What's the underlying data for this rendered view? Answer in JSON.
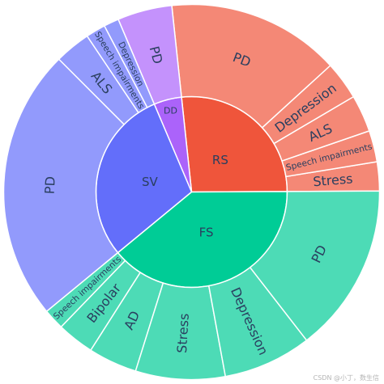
{
  "chart_data": {
    "type": "sunburst",
    "colors": {
      "RS": "#ef553b",
      "FS": "#00cc96",
      "SV": "#636efa",
      "DD": "#ab63fa"
    },
    "children": [
      {
        "label": "RS",
        "value": 0.266,
        "children": [
          {
            "label": "Stress",
            "value": 0.025
          },
          {
            "label": "Speech impairments",
            "value": 0.027
          },
          {
            "label": "ALS",
            "value": 0.032
          },
          {
            "label": "Depression",
            "value": 0.033
          },
          {
            "label": "PD",
            "value": 0.149
          }
        ]
      },
      {
        "label": "DD",
        "value": 0.047,
        "children": [
          {
            "label": "PD",
            "value": 0.047
          }
        ]
      },
      {
        "label": "SV",
        "value": 0.296,
        "children": [
          {
            "label": "Depression",
            "value": 0.013
          },
          {
            "label": "Speech impairments",
            "value": 0.017
          },
          {
            "label": "ALS",
            "value": 0.031
          },
          {
            "label": "PD",
            "value": 0.235
          }
        ]
      },
      {
        "label": "FS",
        "value": 0.391,
        "children": [
          {
            "label": "Speech impairments",
            "value": 0.018
          },
          {
            "label": "Bipolar",
            "value": 0.032
          },
          {
            "label": "AD",
            "value": 0.042
          },
          {
            "label": "Stress",
            "value": 0.077
          },
          {
            "label": "Depression",
            "value": 0.076
          },
          {
            "label": "PD",
            "value": 0.146
          }
        ]
      }
    ]
  },
  "watermark": "CSDN @小丁，数生信"
}
